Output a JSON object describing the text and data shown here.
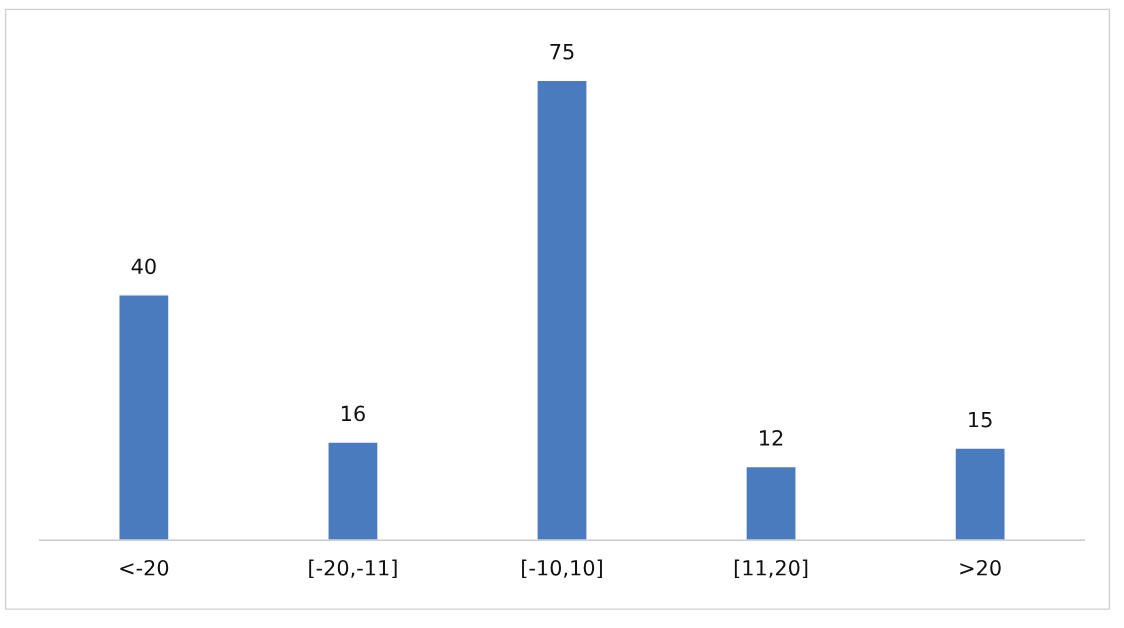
{
  "chart_data": {
    "type": "bar",
    "categories": [
      "<-20",
      "[-20,-11]",
      "[-10,10]",
      "[11,20]",
      ">20"
    ],
    "values": [
      40,
      16,
      75,
      12,
      15
    ],
    "color": "#4a7bbf",
    "data_labels": true,
    "grid": false,
    "legend": false
  }
}
